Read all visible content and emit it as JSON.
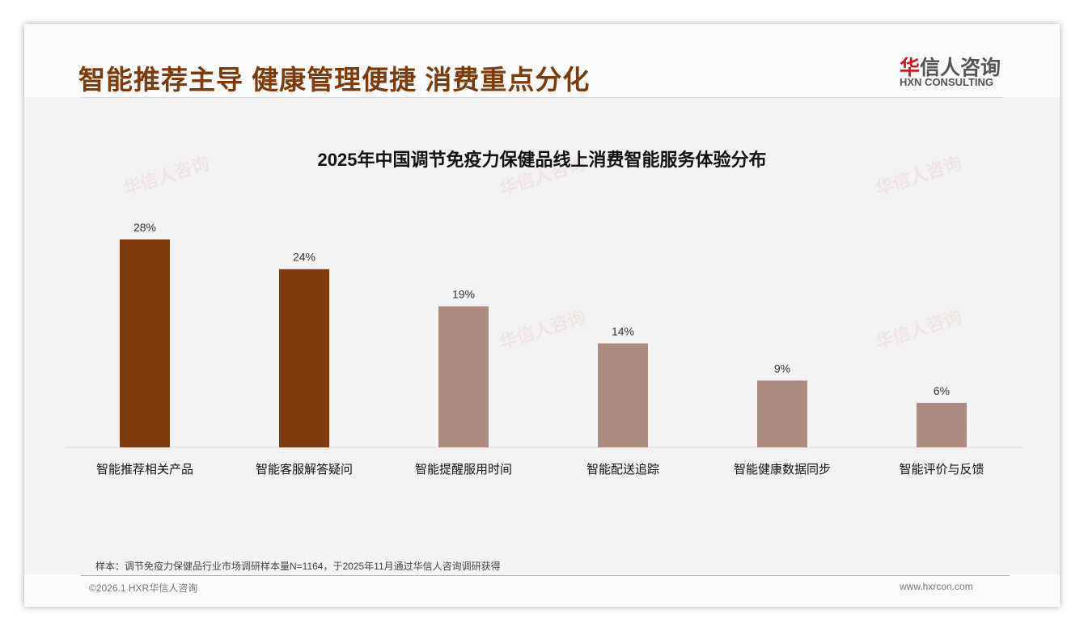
{
  "header": {
    "title": "智能推荐主导 健康管理便捷 消费重点分化",
    "logo_cn_red": "华",
    "logo_cn": "信人咨询",
    "logo_en": "HXN CONSULTING"
  },
  "chart_data": {
    "type": "bar",
    "title": "2025年中国调节免疫力保健品线上消费智能服务体验分布",
    "categories": [
      "智能推荐相关产品",
      "智能客服解答疑问",
      "智能提醒服用时间",
      "智能配送追踪",
      "智能健康数据同步",
      "智能评价与反馈"
    ],
    "values": [
      28,
      24,
      19,
      14,
      9,
      6
    ],
    "labels": [
      "28%",
      "24%",
      "19%",
      "14%",
      "9%",
      "6%"
    ],
    "colors": [
      "#7f3b0f",
      "#7f3b0f",
      "#ac8c82",
      "#ac8c82",
      "#ac8c82",
      "#ac8c82"
    ],
    "ylim": [
      0,
      30
    ]
  },
  "footer": {
    "note": "样本：调节免疫力保健品行业市场调研样本量N=1164，于2025年11月通过华信人咨询调研获得",
    "copyright": "©2026.1 HXR华信人咨询",
    "url": "www.hxrcon.com"
  }
}
